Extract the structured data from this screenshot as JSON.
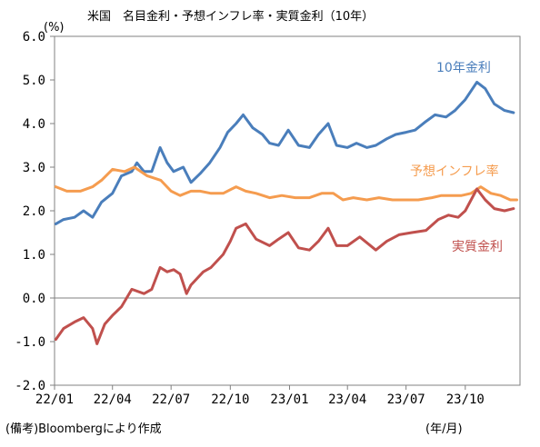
{
  "chart_data": {
    "type": "line",
    "title": "米国　名目金利・予想インフレ率・実質金利（10年）",
    "y_unit": "(%)",
    "x_unit": "(年/月)",
    "source_note": "(備考)Bloombergにより作成",
    "ylim": [
      -2.0,
      6.0
    ],
    "xlim": [
      "2022-01-01",
      "2023-12-25"
    ],
    "yticks": [
      "6.0",
      "5.0",
      "4.0",
      "3.0",
      "2.0",
      "1.0",
      "0.0",
      "-1.0",
      "-2.0"
    ],
    "ytick_values": [
      6,
      5,
      4,
      3,
      2,
      1,
      0,
      -1,
      -2
    ],
    "xticks": [
      "22/01",
      "22/04",
      "22/07",
      "22/10",
      "23/01",
      "23/04",
      "23/07",
      "23/10"
    ],
    "xtick_values": [
      "2022-01-01",
      "2022-04-01",
      "2022-07-01",
      "2022-10-01",
      "2023-01-01",
      "2023-04-01",
      "2023-07-01",
      "2023-10-01"
    ],
    "grid": false,
    "legend": "inline labels",
    "zero_line": true,
    "series": [
      {
        "name": "10年金利",
        "color": "#4a7ebb",
        "x": [
          "2022-01-03",
          "2022-01-15",
          "2022-02-01",
          "2022-02-15",
          "2022-03-01",
          "2022-03-15",
          "2022-04-01",
          "2022-04-15",
          "2022-05-01",
          "2022-05-09",
          "2022-05-20",
          "2022-06-01",
          "2022-06-14",
          "2022-06-25",
          "2022-07-05",
          "2022-07-20",
          "2022-08-01",
          "2022-08-15",
          "2022-08-30",
          "2022-09-15",
          "2022-09-27",
          "2022-10-10",
          "2022-10-21",
          "2022-11-05",
          "2022-11-20",
          "2022-12-01",
          "2022-12-15",
          "2022-12-30",
          "2023-01-15",
          "2023-02-01",
          "2023-02-15",
          "2023-03-02",
          "2023-03-15",
          "2023-04-01",
          "2023-04-15",
          "2023-05-01",
          "2023-05-15",
          "2023-06-01",
          "2023-06-15",
          "2023-07-01",
          "2023-07-15",
          "2023-08-01",
          "2023-08-15",
          "2023-09-01",
          "2023-09-15",
          "2023-10-01",
          "2023-10-19",
          "2023-11-01",
          "2023-11-15",
          "2023-12-01",
          "2023-12-15"
        ],
        "y": [
          1.7,
          1.8,
          1.85,
          2.0,
          1.85,
          2.2,
          2.4,
          2.8,
          2.9,
          3.1,
          2.9,
          2.9,
          3.45,
          3.1,
          2.9,
          3.0,
          2.65,
          2.85,
          3.1,
          3.45,
          3.8,
          4.0,
          4.2,
          3.9,
          3.75,
          3.55,
          3.5,
          3.85,
          3.5,
          3.45,
          3.75,
          4.0,
          3.5,
          3.45,
          3.55,
          3.45,
          3.5,
          3.65,
          3.75,
          3.8,
          3.85,
          4.05,
          4.2,
          4.15,
          4.3,
          4.55,
          4.95,
          4.8,
          4.45,
          4.3,
          4.25
        ]
      },
      {
        "name": "予想インフレ率",
        "color": "#f59c4f",
        "x": [
          "2022-01-03",
          "2022-01-20",
          "2022-02-10",
          "2022-03-01",
          "2022-03-15",
          "2022-04-01",
          "2022-04-20",
          "2022-05-05",
          "2022-05-25",
          "2022-06-15",
          "2022-07-01",
          "2022-07-15",
          "2022-08-01",
          "2022-08-15",
          "2022-09-01",
          "2022-09-20",
          "2022-10-10",
          "2022-10-25",
          "2022-11-10",
          "2022-12-01",
          "2022-12-20",
          "2023-01-10",
          "2023-02-01",
          "2023-02-20",
          "2023-03-10",
          "2023-03-25",
          "2023-04-10",
          "2023-05-01",
          "2023-05-20",
          "2023-06-10",
          "2023-07-01",
          "2023-07-20",
          "2023-08-10",
          "2023-08-25",
          "2023-09-10",
          "2023-09-25",
          "2023-10-10",
          "2023-10-25",
          "2023-11-10",
          "2023-11-25",
          "2023-12-10",
          "2023-12-20"
        ],
        "y": [
          2.55,
          2.45,
          2.45,
          2.55,
          2.7,
          2.95,
          2.9,
          3.0,
          2.8,
          2.7,
          2.45,
          2.35,
          2.45,
          2.45,
          2.4,
          2.4,
          2.55,
          2.45,
          2.4,
          2.3,
          2.35,
          2.3,
          2.3,
          2.4,
          2.4,
          2.25,
          2.3,
          2.25,
          2.3,
          2.25,
          2.25,
          2.25,
          2.3,
          2.35,
          2.35,
          2.35,
          2.4,
          2.55,
          2.4,
          2.35,
          2.25,
          2.25
        ]
      },
      {
        "name": "実質金利",
        "color": "#c0504d",
        "x": [
          "2022-01-03",
          "2022-01-15",
          "2022-02-01",
          "2022-02-15",
          "2022-03-01",
          "2022-03-08",
          "2022-03-20",
          "2022-04-01",
          "2022-04-15",
          "2022-05-01",
          "2022-05-20",
          "2022-06-01",
          "2022-06-14",
          "2022-06-25",
          "2022-07-05",
          "2022-07-15",
          "2022-07-25",
          "2022-08-01",
          "2022-08-20",
          "2022-09-01",
          "2022-09-20",
          "2022-10-01",
          "2022-10-10",
          "2022-10-25",
          "2022-11-10",
          "2022-12-01",
          "2022-12-15",
          "2022-12-30",
          "2023-01-15",
          "2023-02-01",
          "2023-02-15",
          "2023-03-02",
          "2023-03-15",
          "2023-04-01",
          "2023-04-20",
          "2023-05-15",
          "2023-06-01",
          "2023-06-20",
          "2023-07-10",
          "2023-08-01",
          "2023-08-20",
          "2023-09-05",
          "2023-09-20",
          "2023-10-01",
          "2023-10-19",
          "2023-11-01",
          "2023-11-15",
          "2023-12-01",
          "2023-12-15"
        ],
        "y": [
          -0.95,
          -0.7,
          -0.55,
          -0.45,
          -0.7,
          -1.05,
          -0.6,
          -0.4,
          -0.2,
          0.2,
          0.1,
          0.2,
          0.7,
          0.6,
          0.65,
          0.55,
          0.1,
          0.3,
          0.6,
          0.7,
          1.0,
          1.3,
          1.6,
          1.7,
          1.35,
          1.2,
          1.35,
          1.5,
          1.15,
          1.1,
          1.3,
          1.6,
          1.2,
          1.2,
          1.4,
          1.1,
          1.3,
          1.45,
          1.5,
          1.55,
          1.8,
          1.9,
          1.85,
          2.0,
          2.5,
          2.25,
          2.05,
          2.0,
          2.05
        ]
      }
    ]
  }
}
